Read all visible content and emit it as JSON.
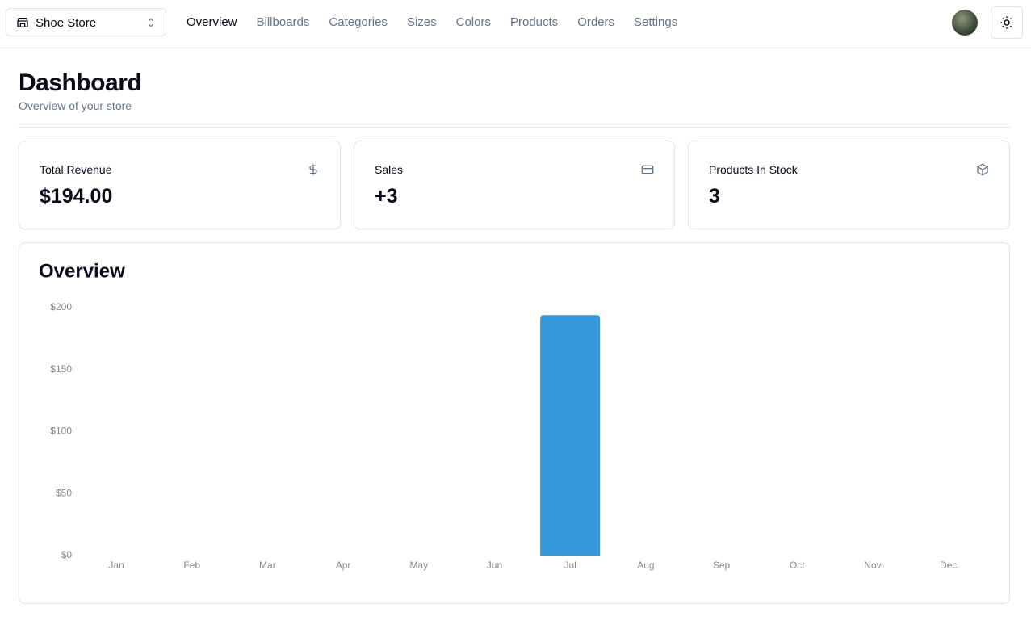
{
  "store_switcher": {
    "label": "Shoe Store"
  },
  "nav": {
    "links": [
      "Overview",
      "Billboards",
      "Categories",
      "Sizes",
      "Colors",
      "Products",
      "Orders",
      "Settings"
    ]
  },
  "header": {
    "title": "Dashboard",
    "subtitle": "Overview of your store"
  },
  "cards": [
    {
      "title": "Total Revenue",
      "value": "$194.00"
    },
    {
      "title": "Sales",
      "value": "+3"
    },
    {
      "title": "Products In Stock",
      "value": "3"
    }
  ],
  "chart_data": {
    "type": "bar",
    "title": "Overview",
    "categories": [
      "Jan",
      "Feb",
      "Mar",
      "Apr",
      "May",
      "Jun",
      "Jul",
      "Aug",
      "Sep",
      "Oct",
      "Nov",
      "Dec"
    ],
    "values": [
      0,
      0,
      0,
      0,
      0,
      0,
      194,
      0,
      0,
      0,
      0,
      0
    ],
    "color": "#3498db",
    "ylim": [
      0,
      200
    ],
    "yticks": [
      {
        "value": 0,
        "label": "$0"
      },
      {
        "value": 50,
        "label": "$50"
      },
      {
        "value": 100,
        "label": "$100"
      },
      {
        "value": 150,
        "label": "$150"
      },
      {
        "value": 200,
        "label": "$200"
      }
    ],
    "grid": false
  }
}
